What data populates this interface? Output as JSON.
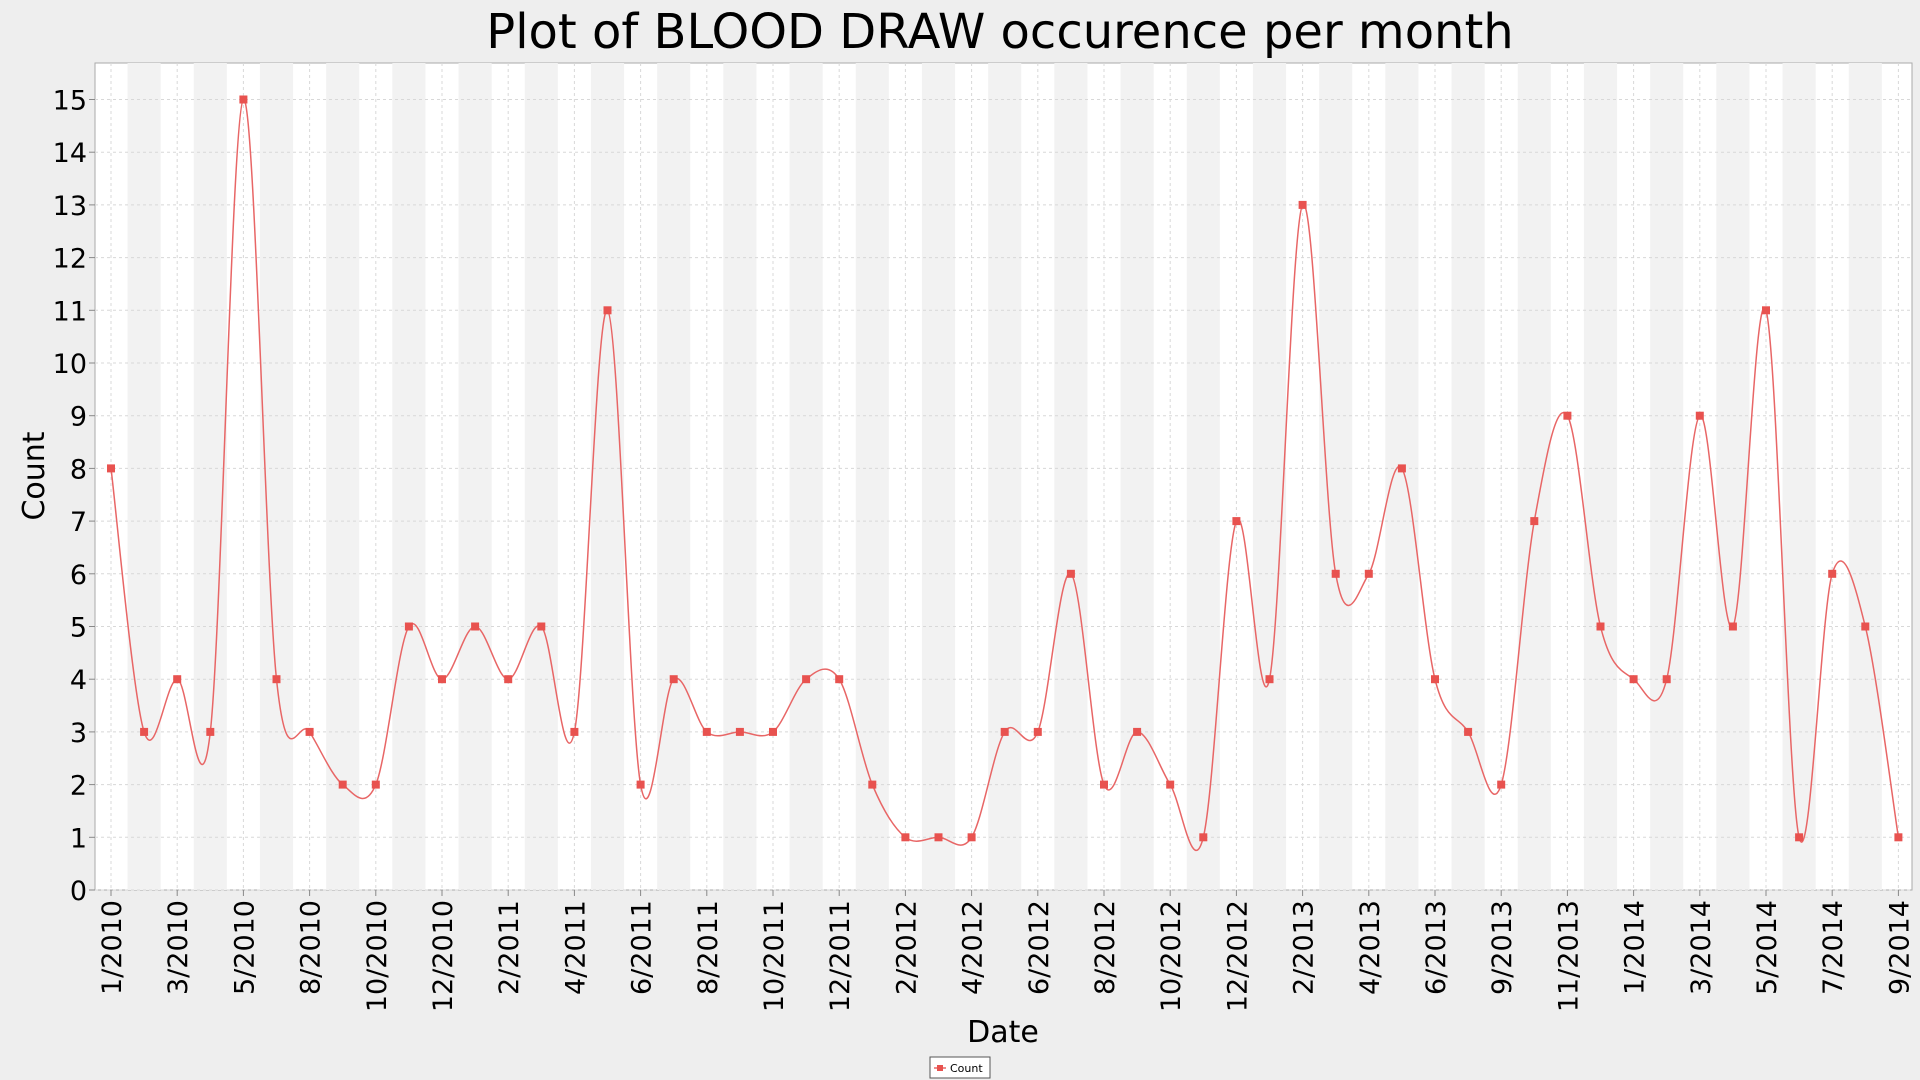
{
  "chart_data": {
    "type": "line",
    "title": "Plot of BLOOD DRAW occurence per month",
    "xlabel": "Date",
    "ylabel": "Count",
    "ylim": [
      0,
      15.5
    ],
    "y_ticks": [
      0,
      1,
      2,
      3,
      4,
      5,
      6,
      7,
      8,
      9,
      10,
      11,
      12,
      13,
      14,
      15
    ],
    "x_tick_labels": [
      "1/2010",
      "3/2010",
      "5/2010",
      "8/2010",
      "10/2010",
      "12/2010",
      "2/2011",
      "4/2011",
      "6/2011",
      "8/2011",
      "10/2011",
      "12/2011",
      "2/2012",
      "4/2012",
      "6/2012",
      "8/2012",
      "10/2012",
      "12/2012",
      "2/2013",
      "4/2013",
      "6/2013",
      "9/2013",
      "11/2013",
      "1/2014",
      "3/2014",
      "5/2014",
      "7/2014",
      "9/2014"
    ],
    "grid": true,
    "alternating_bands": true,
    "legend_position": "bottom-center",
    "colors": {
      "series": "#e86666",
      "marker": "#e8524f",
      "band": "#f2f2f2",
      "plot_bg": "#ffffff",
      "page_bg": "#eeeeee",
      "grid": "#d8d8d8"
    },
    "series": [
      {
        "name": "Count",
        "values": [
          8,
          3,
          4,
          3,
          15,
          4,
          3,
          2,
          2,
          5,
          4,
          5,
          4,
          5,
          3,
          11,
          2,
          4,
          3,
          3,
          3,
          4,
          4,
          2,
          1,
          1,
          1,
          3,
          3,
          6,
          2,
          3,
          2,
          1,
          7,
          4,
          13,
          6,
          6,
          8,
          4,
          3,
          2,
          7,
          9,
          5,
          4,
          4,
          9,
          5,
          11,
          1,
          6,
          5,
          1
        ]
      }
    ]
  }
}
